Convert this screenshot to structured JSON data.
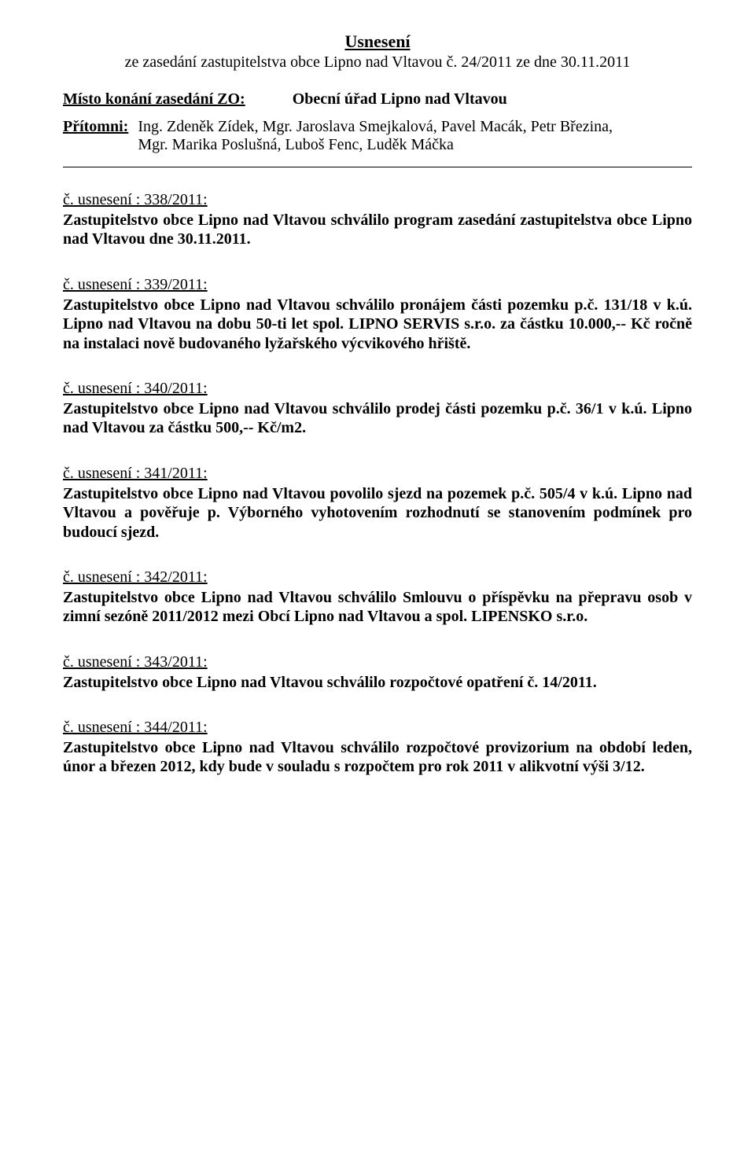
{
  "title": "Usnesení",
  "subtitle": "ze  zasedání zastupitelstva obce Lipno nad Vltavou č. 24/2011 ze dne 30.11.2011",
  "meeting_place": {
    "label": "Místo konání zasedání ZO:",
    "value": "Obecní úřad Lipno nad Vltavou"
  },
  "attendees": {
    "label": "Přítomni:",
    "line1": "Ing. Zdeněk Zídek,  Mgr. Jaroslava Smejkalová, Pavel Macák, Petr Březina,",
    "line2": "Mgr. Marika Poslušná, Luboš Fenc, Luděk Máčka"
  },
  "resolutions": [
    {
      "heading": "č. usnesení :  338/2011:",
      "body": "Zastupitelstvo obce Lipno nad Vltavou schválilo program  zasedání zastupitelstva obce Lipno nad Vltavou dne 30.11.2011."
    },
    {
      "heading": "č. usnesení :  339/2011:",
      "body": "Zastupitelstvo obce Lipno nad Vltavou schválilo pronájem části pozemku p.č. 131/18 v k.ú. Lipno nad Vltavou na dobu 50-ti let spol. LIPNO SERVIS s.r.o. za částku 10.000,-- Kč ročně na instalaci nově budovaného lyžařského výcvikového hřiště."
    },
    {
      "heading": "č. usnesení :  340/2011:",
      "body": "Zastupitelstvo obce Lipno nad Vltavou schválilo prodej části pozemku p.č. 36/1 v k.ú. Lipno nad Vltavou za částku 500,-- Kč/m2."
    },
    {
      "heading": "č. usnesení :  341/2011:",
      "body": "Zastupitelstvo obce Lipno nad Vltavou povolilo sjezd na pozemek p.č. 505/4 v k.ú. Lipno nad Vltavou a pověřuje p. Výborného vyhotovením rozhodnutí se stanovením podmínek pro budoucí sjezd."
    },
    {
      "heading": "č. usnesení :  342/2011:",
      "body": "Zastupitelstvo obce Lipno nad Vltavou schválilo Smlouvu o příspěvku na přepravu osob v zimní sezóně 2011/2012 mezi Obcí Lipno nad Vltavou a spol. LIPENSKO s.r.o."
    },
    {
      "heading": "č. usnesení :  343/2011:",
      "body": "Zastupitelstvo obce Lipno nad Vltavou schválilo rozpočtové opatření č. 14/2011."
    },
    {
      "heading": "č. usnesení :  344/2011:",
      "body": "Zastupitelstvo obce Lipno nad Vltavou schválilo rozpočtové provizorium na období leden, únor a březen 2012, kdy bude v souladu s rozpočtem pro rok 2011 v alikvotní výši 3/12."
    }
  ]
}
